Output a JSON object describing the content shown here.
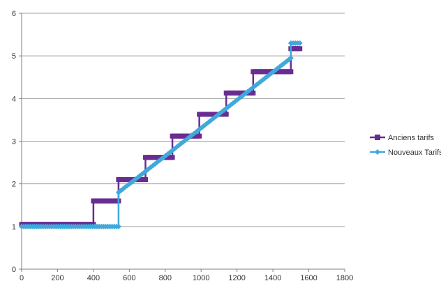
{
  "chart_data": {
    "type": "line",
    "title": "",
    "xlabel": "",
    "ylabel": "",
    "xlim": [
      0,
      1800
    ],
    "ylim": [
      0,
      6
    ],
    "xticks": [
      0,
      200,
      400,
      600,
      800,
      1000,
      1200,
      1400,
      1600,
      1800
    ],
    "yticks": [
      0,
      1,
      2,
      3,
      4,
      5,
      6
    ],
    "xtick_labels": [
      "0",
      "200",
      "400",
      "600",
      "800",
      "1000",
      "1200",
      "1400",
      "1600",
      "1800"
    ],
    "ytick_labels": [
      "0",
      "1",
      "2",
      "3",
      "4",
      "5",
      "6"
    ],
    "grid": "horizontal",
    "legend_position": "right",
    "series": [
      {
        "name": "Anciens tarifs",
        "color": "#6a2c91",
        "marker": "square",
        "points": [
          [
            0,
            1.05
          ],
          [
            400,
            1.05
          ],
          [
            400,
            1.6
          ],
          [
            540,
            1.6
          ],
          [
            540,
            2.1
          ],
          [
            690,
            2.1
          ],
          [
            690,
            2.62
          ],
          [
            840,
            2.62
          ],
          [
            840,
            3.12
          ],
          [
            990,
            3.12
          ],
          [
            990,
            3.63
          ],
          [
            1140,
            3.63
          ],
          [
            1140,
            4.13
          ],
          [
            1290,
            4.13
          ],
          [
            1290,
            4.63
          ],
          [
            1500,
            4.63
          ],
          [
            1500,
            5.17
          ],
          [
            1550,
            5.17
          ]
        ]
      },
      {
        "name": "Nouveaux Tarifs",
        "color": "#3fa9dc",
        "marker": "diamond",
        "points": [
          [
            0,
            1.0
          ],
          [
            540,
            1.0
          ],
          [
            540,
            1.8
          ],
          [
            1500,
            4.95
          ],
          [
            1500,
            5.3
          ],
          [
            1550,
            5.3
          ]
        ]
      }
    ]
  }
}
